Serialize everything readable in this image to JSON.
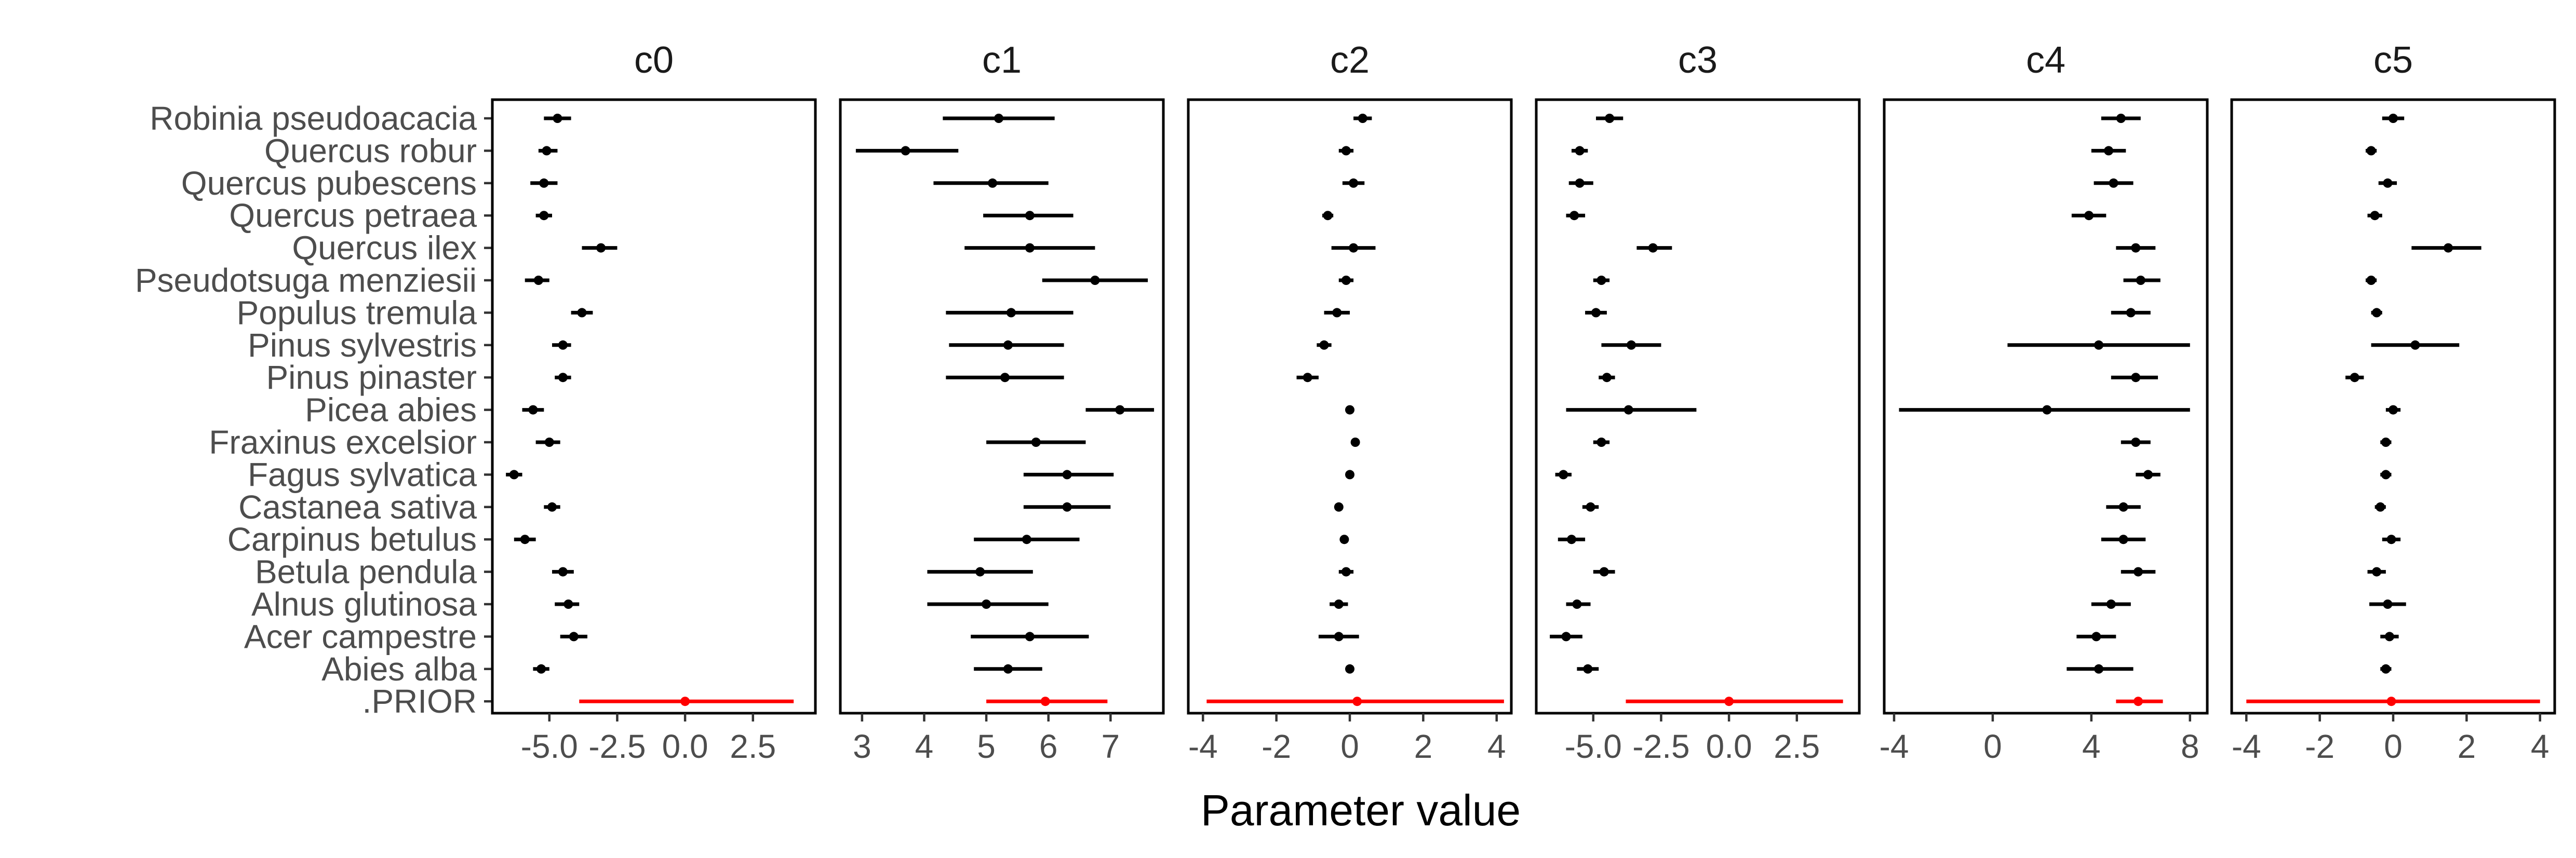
{
  "chart_data": {
    "type": "forest",
    "xlabel": "Parameter value",
    "ylabel": "",
    "title": "",
    "grid": false,
    "legend": "none",
    "colors": {
      "species": "#000000",
      "prior": "#ff0000"
    },
    "species": [
      "Robinia pseudoacacia",
      "Quercus robur",
      "Quercus pubescens",
      "Quercus petraea",
      "Quercus ilex",
      "Pseudotsuga menziesii",
      "Populus tremula",
      "Pinus sylvestris",
      "Pinus pinaster",
      "Picea abies",
      "Fraxinus excelsior",
      "Fagus sylvatica",
      "Castanea sativa",
      "Carpinus betulus",
      "Betula pendula",
      "Alnus glutinosa",
      "Acer campestre",
      "Abies alba",
      ".PRIOR"
    ],
    "panels": [
      {
        "name": "c0",
        "xlim": [
          -7.1,
          4.8
        ],
        "ticks": [
          -5.0,
          -2.5,
          0.0,
          2.5
        ],
        "tick_labels": [
          "-5.0",
          "-2.5",
          "0.0",
          "2.5"
        ],
        "estimates": [
          {
            "mean": -4.7,
            "lo": -5.2,
            "hi": -4.2
          },
          {
            "mean": -5.1,
            "lo": -5.4,
            "hi": -4.7
          },
          {
            "mean": -5.2,
            "lo": -5.7,
            "hi": -4.7
          },
          {
            "mean": -5.2,
            "lo": -5.5,
            "hi": -4.9
          },
          {
            "mean": -3.1,
            "lo": -3.8,
            "hi": -2.5
          },
          {
            "mean": -5.4,
            "lo": -5.9,
            "hi": -5.0
          },
          {
            "mean": -3.8,
            "lo": -4.2,
            "hi": -3.4
          },
          {
            "mean": -4.5,
            "lo": -4.9,
            "hi": -4.2
          },
          {
            "mean": -4.5,
            "lo": -4.8,
            "hi": -4.2
          },
          {
            "mean": -5.6,
            "lo": -6.0,
            "hi": -5.2
          },
          {
            "mean": -5.0,
            "lo": -5.5,
            "hi": -4.6
          },
          {
            "mean": -6.3,
            "lo": -6.6,
            "hi": -6.0
          },
          {
            "mean": -4.9,
            "lo": -5.2,
            "hi": -4.6
          },
          {
            "mean": -5.9,
            "lo": -6.3,
            "hi": -5.5
          },
          {
            "mean": -4.5,
            "lo": -4.9,
            "hi": -4.1
          },
          {
            "mean": -4.3,
            "lo": -4.8,
            "hi": -3.9
          },
          {
            "mean": -4.1,
            "lo": -4.6,
            "hi": -3.6
          },
          {
            "mean": -5.3,
            "lo": -5.6,
            "hi": -5.0
          },
          {
            "mean": 0.0,
            "lo": -3.9,
            "hi": 4.0
          }
        ]
      },
      {
        "name": "c1",
        "xlim": [
          2.65,
          7.85
        ],
        "ticks": [
          3,
          4,
          5,
          6,
          7
        ],
        "tick_labels": [
          "3",
          "4",
          "5",
          "6",
          "7"
        ],
        "estimates": [
          {
            "mean": 5.2,
            "lo": 4.3,
            "hi": 6.1
          },
          {
            "mean": 3.7,
            "lo": 2.9,
            "hi": 4.55
          },
          {
            "mean": 5.1,
            "lo": 4.15,
            "hi": 6.0
          },
          {
            "mean": 5.7,
            "lo": 4.95,
            "hi": 6.4
          },
          {
            "mean": 5.7,
            "lo": 4.65,
            "hi": 6.75
          },
          {
            "mean": 6.75,
            "lo": 5.9,
            "hi": 7.6
          },
          {
            "mean": 5.4,
            "lo": 4.35,
            "hi": 6.4
          },
          {
            "mean": 5.35,
            "lo": 4.4,
            "hi": 6.25
          },
          {
            "mean": 5.3,
            "lo": 4.35,
            "hi": 6.25
          },
          {
            "mean": 7.15,
            "lo": 6.6,
            "hi": 7.7
          },
          {
            "mean": 5.8,
            "lo": 5.0,
            "hi": 6.6
          },
          {
            "mean": 6.3,
            "lo": 5.6,
            "hi": 7.05
          },
          {
            "mean": 6.3,
            "lo": 5.6,
            "hi": 7.0
          },
          {
            "mean": 5.65,
            "lo": 4.8,
            "hi": 6.5
          },
          {
            "mean": 4.9,
            "lo": 4.05,
            "hi": 5.75
          },
          {
            "mean": 5.0,
            "lo": 4.05,
            "hi": 6.0
          },
          {
            "mean": 5.7,
            "lo": 4.75,
            "hi": 6.65
          },
          {
            "mean": 5.35,
            "lo": 4.8,
            "hi": 5.9
          },
          {
            "mean": 5.95,
            "lo": 5.0,
            "hi": 6.95
          }
        ]
      },
      {
        "name": "c2",
        "xlim": [
          -4.4,
          4.4
        ],
        "ticks": [
          -4,
          -2,
          0,
          2,
          4
        ],
        "tick_labels": [
          "-4",
          "-2",
          "0",
          "2",
          "4"
        ],
        "estimates": [
          {
            "mean": 0.35,
            "lo": 0.1,
            "hi": 0.6
          },
          {
            "mean": -0.1,
            "lo": -0.3,
            "hi": 0.1
          },
          {
            "mean": 0.1,
            "lo": -0.2,
            "hi": 0.4
          },
          {
            "mean": -0.6,
            "lo": -0.75,
            "hi": -0.45
          },
          {
            "mean": 0.1,
            "lo": -0.5,
            "hi": 0.7
          },
          {
            "mean": -0.1,
            "lo": -0.3,
            "hi": 0.1
          },
          {
            "mean": -0.35,
            "lo": -0.7,
            "hi": 0.0
          },
          {
            "mean": -0.7,
            "lo": -0.9,
            "hi": -0.5
          },
          {
            "mean": -1.15,
            "lo": -1.45,
            "hi": -0.85
          },
          {
            "mean": 0.0,
            "lo": -0.1,
            "hi": 0.1
          },
          {
            "mean": 0.15,
            "lo": 0.05,
            "hi": 0.25
          },
          {
            "mean": 0.0,
            "lo": -0.1,
            "hi": 0.1
          },
          {
            "mean": -0.3,
            "lo": -0.4,
            "hi": -0.2
          },
          {
            "mean": -0.15,
            "lo": -0.25,
            "hi": -0.05
          },
          {
            "mean": -0.1,
            "lo": -0.3,
            "hi": 0.1
          },
          {
            "mean": -0.3,
            "lo": -0.55,
            "hi": -0.05
          },
          {
            "mean": -0.3,
            "lo": -0.85,
            "hi": 0.25
          },
          {
            "mean": 0.0,
            "lo": -0.1,
            "hi": 0.1
          },
          {
            "mean": 0.2,
            "lo": -3.9,
            "hi": 4.2
          }
        ]
      },
      {
        "name": "c3",
        "xlim": [
          -7.1,
          4.8
        ],
        "ticks": [
          -5.0,
          -2.5,
          0.0,
          2.5
        ],
        "tick_labels": [
          "-5.0",
          "-2.5",
          "0.0",
          "2.5"
        ],
        "estimates": [
          {
            "mean": -4.4,
            "lo": -4.9,
            "hi": -3.9
          },
          {
            "mean": -5.5,
            "lo": -5.8,
            "hi": -5.2
          },
          {
            "mean": -5.5,
            "lo": -5.9,
            "hi": -5.0
          },
          {
            "mean": -5.7,
            "lo": -6.0,
            "hi": -5.3
          },
          {
            "mean": -2.8,
            "lo": -3.4,
            "hi": -2.1
          },
          {
            "mean": -4.7,
            "lo": -5.0,
            "hi": -4.4
          },
          {
            "mean": -4.9,
            "lo": -5.3,
            "hi": -4.5
          },
          {
            "mean": -3.6,
            "lo": -4.7,
            "hi": -2.5
          },
          {
            "mean": -4.5,
            "lo": -4.8,
            "hi": -4.2
          },
          {
            "mean": -3.7,
            "lo": -6.0,
            "hi": -1.2
          },
          {
            "mean": -4.7,
            "lo": -5.0,
            "hi": -4.4
          },
          {
            "mean": -6.1,
            "lo": -6.4,
            "hi": -5.8
          },
          {
            "mean": -5.1,
            "lo": -5.4,
            "hi": -4.8
          },
          {
            "mean": -5.8,
            "lo": -6.3,
            "hi": -5.3
          },
          {
            "mean": -4.6,
            "lo": -5.0,
            "hi": -4.2
          },
          {
            "mean": -5.6,
            "lo": -6.0,
            "hi": -5.1
          },
          {
            "mean": -6.0,
            "lo": -6.6,
            "hi": -5.4
          },
          {
            "mean": -5.2,
            "lo": -5.6,
            "hi": -4.8
          },
          {
            "mean": 0.0,
            "lo": -3.8,
            "hi": 4.2
          }
        ]
      },
      {
        "name": "c4",
        "xlim": [
          -4.4,
          8.7
        ],
        "ticks": [
          -4,
          0,
          4,
          8
        ],
        "tick_labels": [
          "-4",
          "0",
          "4",
          "8"
        ],
        "estimates": [
          {
            "mean": 5.2,
            "lo": 4.4,
            "hi": 6.0
          },
          {
            "mean": 4.7,
            "lo": 4.0,
            "hi": 5.4
          },
          {
            "mean": 4.9,
            "lo": 4.1,
            "hi": 5.7
          },
          {
            "mean": 3.9,
            "lo": 3.2,
            "hi": 4.6
          },
          {
            "mean": 5.8,
            "lo": 5.0,
            "hi": 6.6
          },
          {
            "mean": 6.0,
            "lo": 5.3,
            "hi": 6.8
          },
          {
            "mean": 5.6,
            "lo": 4.8,
            "hi": 6.4
          },
          {
            "mean": 4.3,
            "lo": 0.6,
            "hi": 8.0
          },
          {
            "mean": 5.8,
            "lo": 4.8,
            "hi": 6.7
          },
          {
            "mean": 2.2,
            "lo": -3.8,
            "hi": 8.0
          },
          {
            "mean": 5.8,
            "lo": 5.2,
            "hi": 6.4
          },
          {
            "mean": 6.3,
            "lo": 5.8,
            "hi": 6.8
          },
          {
            "mean": 5.3,
            "lo": 4.6,
            "hi": 6.0
          },
          {
            "mean": 5.3,
            "lo": 4.4,
            "hi": 6.2
          },
          {
            "mean": 5.9,
            "lo": 5.2,
            "hi": 6.6
          },
          {
            "mean": 4.8,
            "lo": 4.0,
            "hi": 5.6
          },
          {
            "mean": 4.2,
            "lo": 3.4,
            "hi": 5.0
          },
          {
            "mean": 4.3,
            "lo": 3.0,
            "hi": 5.7
          },
          {
            "mean": 5.9,
            "lo": 5.0,
            "hi": 6.9
          }
        ]
      },
      {
        "name": "c5",
        "xlim": [
          -4.4,
          4.4
        ],
        "ticks": [
          -4,
          -2,
          0,
          2,
          4
        ],
        "tick_labels": [
          "-4",
          "-2",
          "0",
          "2",
          "4"
        ],
        "estimates": [
          {
            "mean": 0.0,
            "lo": -0.3,
            "hi": 0.3
          },
          {
            "mean": -0.6,
            "lo": -0.75,
            "hi": -0.45
          },
          {
            "mean": -0.15,
            "lo": -0.4,
            "hi": 0.1
          },
          {
            "mean": -0.5,
            "lo": -0.7,
            "hi": -0.3
          },
          {
            "mean": 1.5,
            "lo": 0.5,
            "hi": 2.4
          },
          {
            "mean": -0.6,
            "lo": -0.75,
            "hi": -0.45
          },
          {
            "mean": -0.45,
            "lo": -0.6,
            "hi": -0.3
          },
          {
            "mean": 0.6,
            "lo": -0.6,
            "hi": 1.8
          },
          {
            "mean": -1.05,
            "lo": -1.3,
            "hi": -0.8
          },
          {
            "mean": 0.0,
            "lo": -0.2,
            "hi": 0.2
          },
          {
            "mean": -0.2,
            "lo": -0.35,
            "hi": -0.05
          },
          {
            "mean": -0.2,
            "lo": -0.35,
            "hi": -0.05
          },
          {
            "mean": -0.35,
            "lo": -0.5,
            "hi": -0.2
          },
          {
            "mean": -0.05,
            "lo": -0.3,
            "hi": 0.2
          },
          {
            "mean": -0.45,
            "lo": -0.7,
            "hi": -0.2
          },
          {
            "mean": -0.15,
            "lo": -0.65,
            "hi": 0.35
          },
          {
            "mean": -0.1,
            "lo": -0.35,
            "hi": 0.15
          },
          {
            "mean": -0.2,
            "lo": -0.35,
            "hi": -0.05
          },
          {
            "mean": -0.05,
            "lo": -4.0,
            "hi": 4.0
          }
        ]
      }
    ]
  }
}
